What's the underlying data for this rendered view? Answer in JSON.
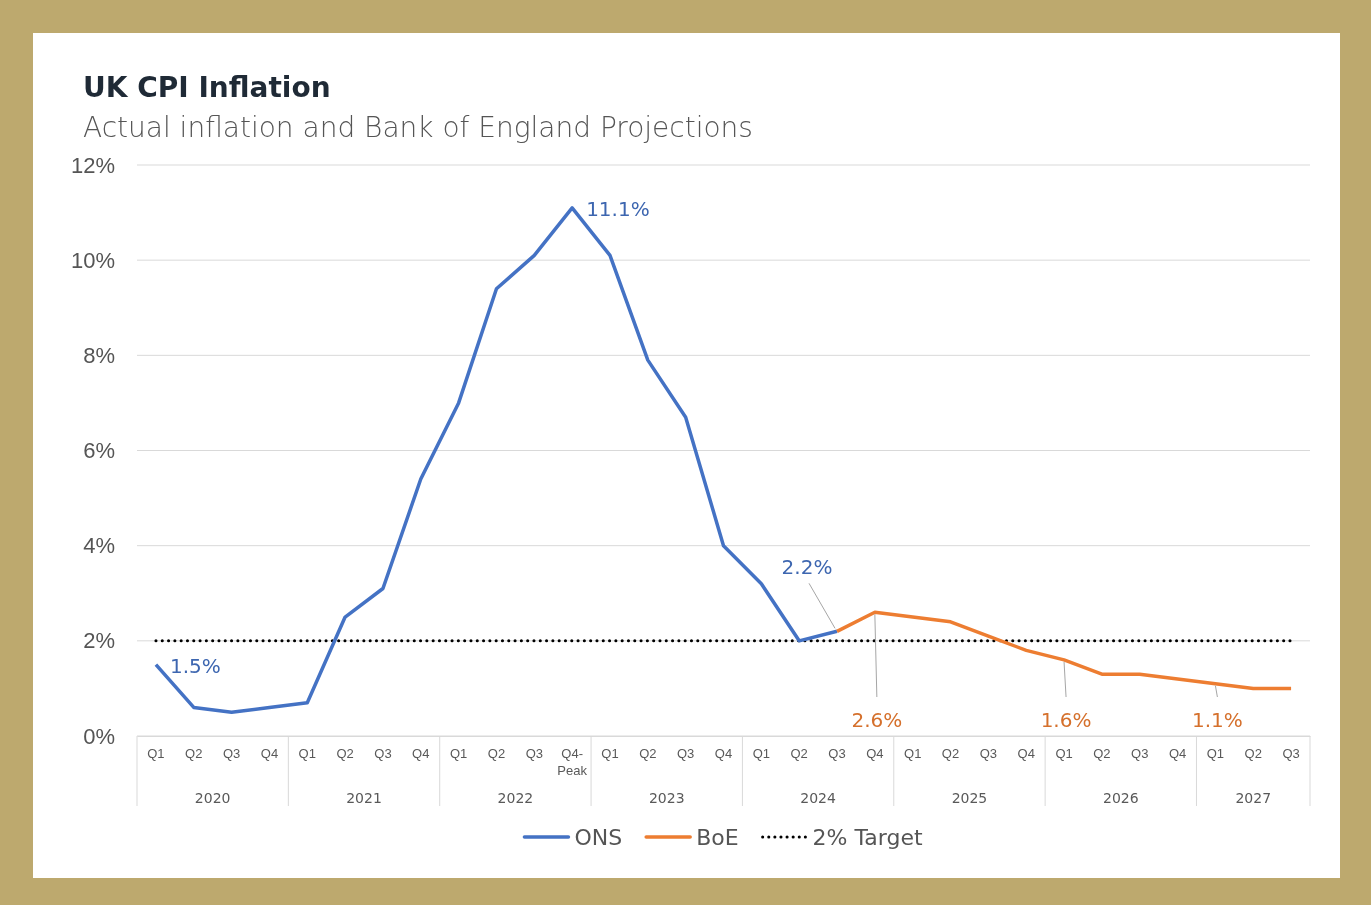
{
  "chart_data": {
    "type": "line",
    "title": "UK CPI Inflation",
    "subtitle": "Actual inflation and Bank of England Projections",
    "categories": [
      "Q1",
      "Q2",
      "Q3",
      "Q4",
      "Q1",
      "Q2",
      "Q3",
      "Q4",
      "Q1",
      "Q2",
      "Q3",
      "Q4-\nPeak",
      "Q1",
      "Q2",
      "Q3",
      "Q4",
      "Q1",
      "Q2",
      "Q3",
      "Q4",
      "Q1",
      "Q2",
      "Q3",
      "Q4",
      "Q1",
      "Q2",
      "Q3",
      "Q4",
      "Q1",
      "Q2",
      "Q3"
    ],
    "annotations": [
      "2020",
      "2021",
      "2022",
      "2023",
      "2024",
      "2025",
      "2026",
      "2027"
    ],
    "series": [
      {
        "name": "ONS",
        "color": "#4472c4",
        "values": [
          1.5,
          0.6,
          0.5,
          0.6,
          0.7,
          2.5,
          3.1,
          5.4,
          7.0,
          9.4,
          10.1,
          11.1,
          10.1,
          7.9,
          6.7,
          4.0,
          3.2,
          2.0,
          2.2,
          null,
          null,
          null,
          null,
          null,
          null,
          null,
          null,
          null,
          null,
          null,
          null
        ],
        "value_labels": [
          "1.5%",
          null,
          null,
          null,
          null,
          null,
          null,
          null,
          null,
          null,
          null,
          "11.1%",
          null,
          null,
          null,
          null,
          null,
          null,
          "2.2%",
          null,
          null,
          null,
          null,
          null,
          null,
          null,
          null,
          null,
          null,
          null,
          null
        ]
      },
      {
        "name": "BoE",
        "color": "#ed7d31",
        "values": [
          null,
          null,
          null,
          null,
          null,
          null,
          null,
          null,
          null,
          null,
          null,
          null,
          null,
          null,
          null,
          null,
          null,
          null,
          2.2,
          2.6,
          2.5,
          2.4,
          2.1,
          1.8,
          1.6,
          1.3,
          1.3,
          1.2,
          1.1,
          1.0,
          1.0
        ],
        "value_labels": [
          null,
          null,
          null,
          null,
          null,
          null,
          null,
          null,
          null,
          null,
          null,
          null,
          null,
          null,
          null,
          null,
          null,
          null,
          null,
          "2.6%",
          null,
          null,
          null,
          null,
          "1.6%",
          null,
          null,
          null,
          "1.1%",
          null,
          null
        ]
      }
    ],
    "ylim": [
      0,
      12
    ],
    "yticks": [
      {
        "value": 0,
        "label": "0%"
      },
      {
        "value": 2,
        "label": "2%"
      },
      {
        "value": 4,
        "label": "4%"
      },
      {
        "value": 6,
        "label": "6%"
      },
      {
        "value": 8,
        "label": "8%"
      },
      {
        "value": 10,
        "label": "10%"
      },
      {
        "value": 12,
        "label": "12%"
      }
    ],
    "ref_lines": [
      {
        "axis": "y",
        "value": 2,
        "label": "2% Target",
        "color": "#000000",
        "line_style": "dotted"
      }
    ],
    "grid": "y",
    "legend": "bottom",
    "marker": "none",
    "line_style": "solid"
  }
}
